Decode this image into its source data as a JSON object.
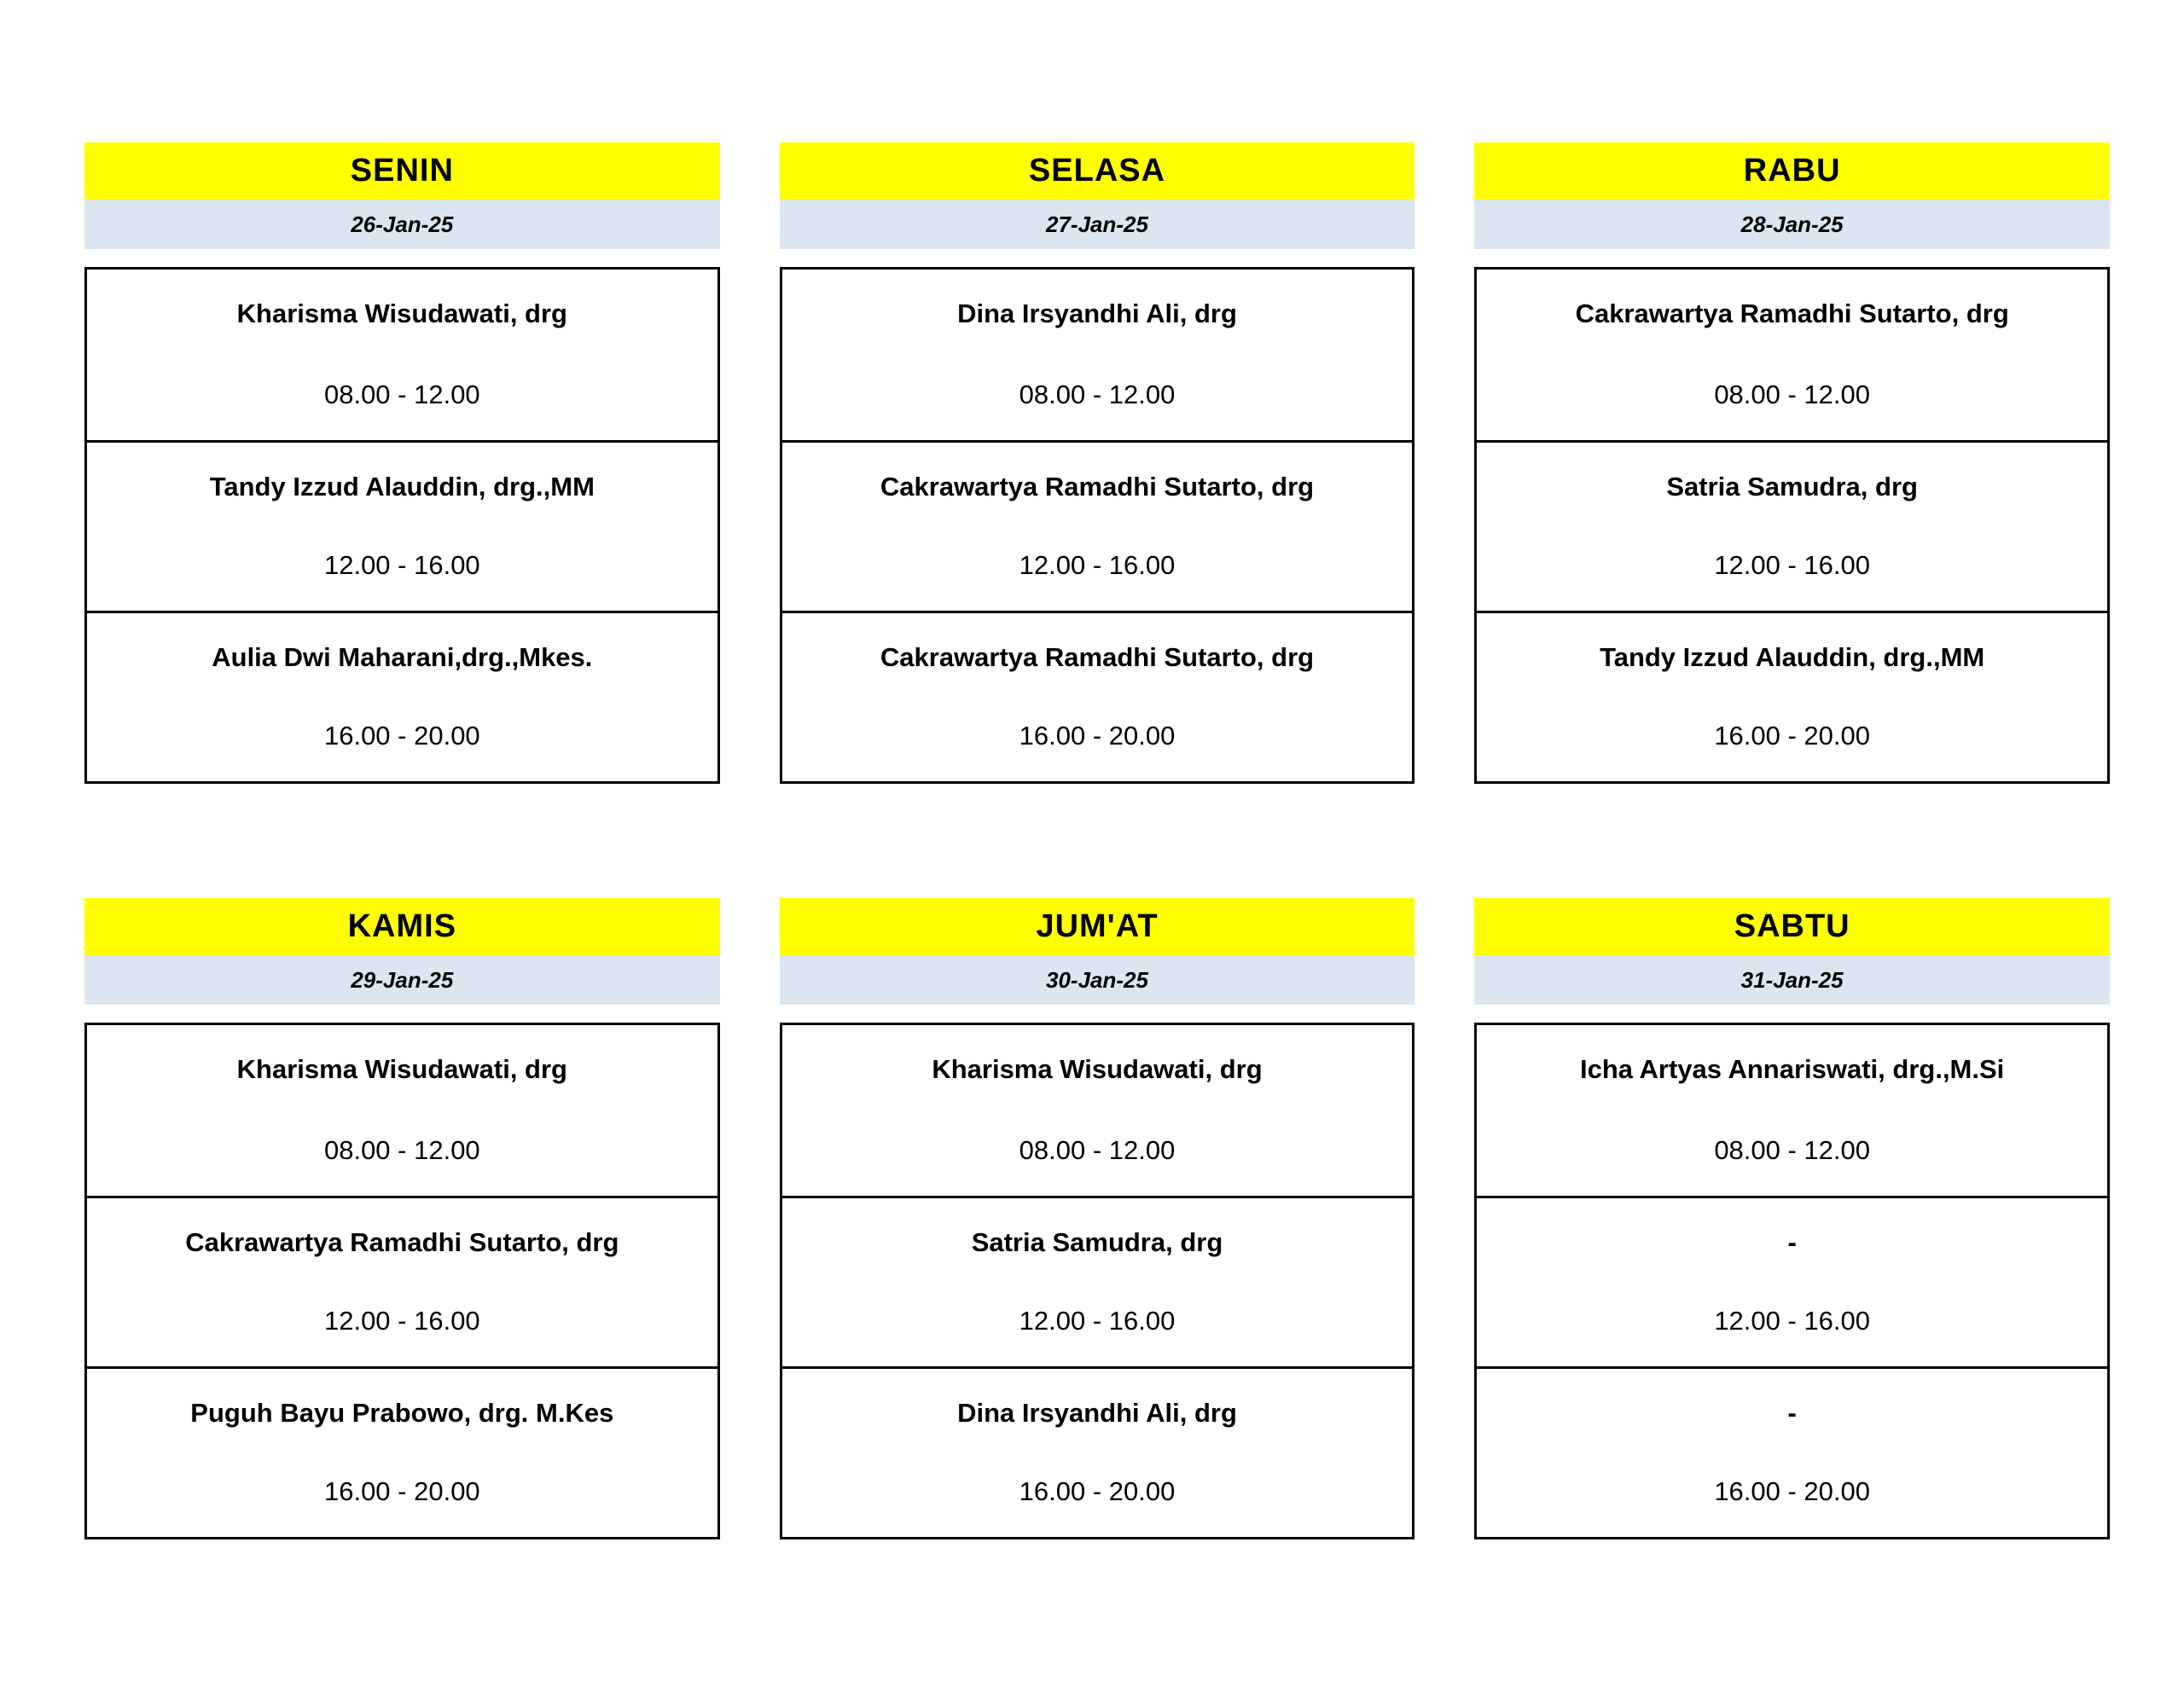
{
  "colors": {
    "day_header_bg": "#FFFF00",
    "date_banner_bg": "#DCE6F1",
    "border": "#000000",
    "text": "#000000",
    "page_bg": "#FFFFFF"
  },
  "days": [
    {
      "name": "SENIN",
      "date": "26-Jan-25",
      "slots": [
        {
          "doctor": "Kharisma Wisudawati, drg",
          "time": "08.00 - 12.00"
        },
        {
          "doctor": "Tandy Izzud Alauddin, drg.,MM",
          "time": "12.00 - 16.00"
        },
        {
          "doctor": "Aulia Dwi Maharani,drg.,Mkes.",
          "time": "16.00 - 20.00"
        }
      ]
    },
    {
      "name": "SELASA",
      "date": "27-Jan-25",
      "slots": [
        {
          "doctor": "Dina Irsyandhi Ali, drg",
          "time": "08.00 - 12.00"
        },
        {
          "doctor": "Cakrawartya Ramadhi Sutarto, drg",
          "time": "12.00 - 16.00"
        },
        {
          "doctor": "Cakrawartya Ramadhi Sutarto, drg",
          "time": "16.00 - 20.00"
        }
      ]
    },
    {
      "name": "RABU",
      "date": "28-Jan-25",
      "slots": [
        {
          "doctor": "Cakrawartya Ramadhi Sutarto, drg",
          "time": "08.00 - 12.00"
        },
        {
          "doctor": "Satria Samudra, drg",
          "time": "12.00 - 16.00"
        },
        {
          "doctor": "Tandy Izzud Alauddin, drg.,MM",
          "time": "16.00 - 20.00"
        }
      ]
    },
    {
      "name": "KAMIS",
      "date": "29-Jan-25",
      "slots": [
        {
          "doctor": "Kharisma Wisudawati, drg",
          "time": "08.00 - 12.00"
        },
        {
          "doctor": "Cakrawartya Ramadhi Sutarto, drg",
          "time": "12.00 - 16.00"
        },
        {
          "doctor": "Puguh Bayu Prabowo, drg. M.Kes",
          "time": "16.00 - 20.00"
        }
      ]
    },
    {
      "name": "JUM'AT",
      "date": "30-Jan-25",
      "slots": [
        {
          "doctor": "Kharisma Wisudawati, drg",
          "time": "08.00 - 12.00"
        },
        {
          "doctor": "Satria Samudra, drg",
          "time": "12.00 - 16.00"
        },
        {
          "doctor": "Dina Irsyandhi Ali, drg",
          "time": "16.00 - 20.00"
        }
      ]
    },
    {
      "name": "SABTU",
      "date": "31-Jan-25",
      "slots": [
        {
          "doctor": "Icha Artyas Annariswati, drg.,M.Si",
          "time": "08.00 - 12.00"
        },
        {
          "doctor": "-",
          "time": "12.00 - 16.00"
        },
        {
          "doctor": "-",
          "time": "16.00 - 20.00"
        }
      ]
    }
  ]
}
